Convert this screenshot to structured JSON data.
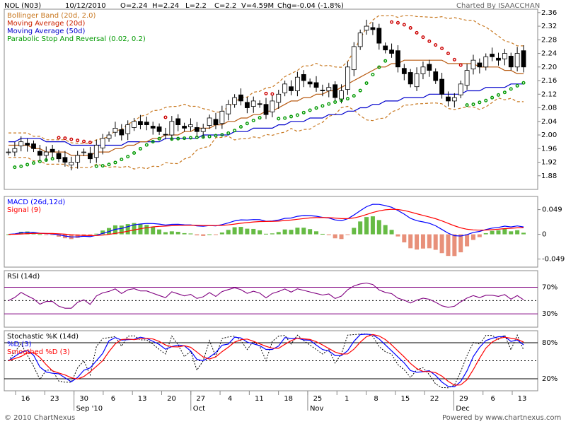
{
  "header": {
    "symbol": "NOL (N03)",
    "date": "10/12/2010",
    "open": "O=2.24",
    "high": "H=2.24",
    "low": "L=2.2",
    "close": "C=2.2",
    "volume": "V=4.59M",
    "change": "Chg=-0.04 (-1.8%)",
    "credit": "Charted By ISAACCHAN"
  },
  "footer": {
    "copyright": "© 2010 ChartNexus",
    "powered": "Powered by www.chartnexus.com"
  },
  "colors": {
    "bollinger": "#c87820",
    "ma20": "#cc2200",
    "ma50": "#0000cc",
    "psar_above": "#cc0000",
    "psar_below": "#009900",
    "macd": "#0000ff",
    "signal": "#ff0000",
    "hist_pos": "#66bb44",
    "hist_neg": "#e8907a",
    "rsi": "#800080",
    "stoch_k": "#000000",
    "stoch_d": "#0000ff",
    "stoch_sd": "#ff0000"
  },
  "chart_data": [
    {
      "type": "candlestick",
      "legend": [
        {
          "label": "Bollinger Band (20d, 2.0)",
          "color": "#c87820"
        },
        {
          "label": "Moving Average (20d)",
          "color": "#cc2200"
        },
        {
          "label": "Moving Average (50d)",
          "color": "#0000cc"
        },
        {
          "label": "Parabolic Stop And Reversal (0.02, 0.2)",
          "color": "#009900"
        }
      ],
      "yticks": [
        "2.36",
        "2.32",
        "2.28",
        "2.24",
        "2.20",
        "2.16",
        "2.12",
        "2.08",
        "2.04",
        "2.00",
        "1.96",
        "1.92",
        "1.88"
      ],
      "ylim": [
        1.84,
        2.37
      ],
      "x_labels": [
        "16",
        "23",
        "30",
        "6",
        "13",
        "20",
        "27",
        "4",
        "11",
        "18",
        "25",
        "1",
        "8",
        "15",
        "22",
        "29",
        "6",
        "13"
      ],
      "month_labels": [
        {
          "label": "Sep '10",
          "after_tick": 2
        },
        {
          "label": "Oct",
          "after_tick": 6
        },
        {
          "label": "Nov",
          "after_tick": 10
        },
        {
          "label": "Dec",
          "after_tick": 15
        }
      ],
      "close": [
        1.95,
        1.96,
        1.98,
        1.97,
        1.96,
        1.94,
        1.95,
        1.95,
        1.93,
        1.92,
        1.92,
        1.94,
        1.95,
        1.93,
        1.97,
        1.99,
        2.0,
        2.02,
        2.0,
        2.03,
        2.04,
        2.03,
        2.03,
        2.02,
        2.01,
        2.0,
        2.04,
        2.03,
        2.02,
        2.03,
        2.01,
        2.02,
        2.05,
        2.03,
        2.07,
        2.09,
        2.11,
        2.1,
        2.08,
        2.1,
        2.09,
        2.06,
        2.1,
        2.12,
        2.15,
        2.13,
        2.17,
        2.16,
        2.15,
        2.14,
        2.13,
        2.14,
        2.11,
        2.13,
        2.2,
        2.26,
        2.3,
        2.32,
        2.31,
        2.27,
        2.25,
        2.24,
        2.2,
        2.18,
        2.15,
        2.18,
        2.2,
        2.19,
        2.16,
        2.12,
        2.1,
        2.11,
        2.15,
        2.19,
        2.22,
        2.2,
        2.23,
        2.23,
        2.22,
        2.24,
        2.2,
        2.24,
        2.2
      ],
      "ma20": [
        1.97,
        1.97,
        1.97,
        1.97,
        1.96,
        1.96,
        1.95,
        1.95,
        1.95,
        1.95,
        1.94,
        1.94,
        1.94,
        1.94,
        1.95,
        1.95,
        1.95,
        1.96,
        1.96,
        1.97,
        1.97,
        1.98,
        1.98,
        1.99,
        1.99,
        2.0,
        2.0,
        2.0,
        2.01,
        2.01,
        2.02,
        2.02,
        2.02,
        2.03,
        2.03,
        2.04,
        2.04,
        2.05,
        2.05,
        2.06,
        2.06,
        2.07,
        2.07,
        2.08,
        2.09,
        2.1,
        2.1,
        2.11,
        2.11,
        2.12,
        2.12,
        2.13,
        2.13,
        2.14,
        2.15,
        2.16,
        2.17,
        2.18,
        2.19,
        2.2,
        2.2,
        2.21,
        2.21,
        2.22,
        2.22,
        2.22,
        2.22,
        2.22,
        2.22,
        2.22,
        2.21,
        2.21,
        2.21,
        2.21,
        2.21,
        2.2,
        2.2,
        2.2,
        2.2,
        2.19,
        2.19,
        2.18,
        2.18
      ],
      "ma50": [
        1.98,
        1.98,
        1.99,
        1.99,
        1.99,
        1.99,
        1.98,
        1.98,
        1.98,
        1.98,
        1.97,
        1.97,
        1.97,
        1.97,
        1.97,
        1.97,
        1.97,
        1.97,
        1.97,
        1.98,
        1.98,
        1.98,
        1.98,
        1.98,
        1.98,
        1.99,
        1.99,
        1.99,
        1.99,
        1.99,
        1.99,
        2.0,
        2.0,
        2.0,
        2.0,
        2.0,
        2.01,
        2.01,
        2.01,
        2.02,
        2.02,
        2.02,
        2.02,
        2.03,
        2.03,
        2.04,
        2.04,
        2.04,
        2.05,
        2.05,
        2.05,
        2.06,
        2.06,
        2.06,
        2.07,
        2.07,
        2.08,
        2.08,
        2.09,
        2.09,
        2.1,
        2.1,
        2.1,
        2.11,
        2.11,
        2.11,
        2.11,
        2.12,
        2.12,
        2.12,
        2.12,
        2.12,
        2.12,
        2.13,
        2.13,
        2.13,
        2.14,
        2.14,
        2.14,
        2.14,
        2.15,
        2.15,
        2.15
      ]
    },
    {
      "type": "bar+line",
      "legend": [
        {
          "label": "MACD (26d,12d)",
          "color": "#0000ff"
        },
        {
          "label": "Signal (9)",
          "color": "#ff0000"
        }
      ],
      "yticks": [
        "0.049",
        "0",
        "-0.049"
      ],
      "ylim": [
        -0.065,
        0.075
      ]
    },
    {
      "type": "line",
      "legend": [
        {
          "label": "RSI (14d)",
          "color": "#000000"
        }
      ],
      "yticks": [
        "70%",
        "30%"
      ],
      "levels": [
        70,
        50,
        30
      ],
      "ylim": [
        10,
        95
      ]
    },
    {
      "type": "line",
      "legend": [
        {
          "label": "Stochastic %K (14d)",
          "color": "#000000"
        },
        {
          "label": "%D (3)",
          "color": "#0000ff"
        },
        {
          "label": "Smoothed %D (3)",
          "color": "#ff0000"
        }
      ],
      "yticks": [
        "80%",
        "20%"
      ],
      "levels": [
        80,
        50,
        20
      ],
      "ylim": [
        0,
        100
      ]
    }
  ]
}
